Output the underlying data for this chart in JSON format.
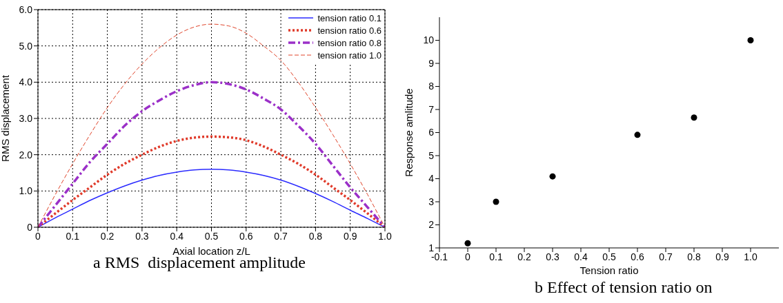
{
  "chart_data": [
    {
      "type": "line",
      "xlabel": "Axial location z/L",
      "ylabel": "RMS displacement",
      "annotations": [
        "a RMS  displacement amplitude"
      ],
      "x": [
        0,
        0.05,
        0.1,
        0.15,
        0.2,
        0.25,
        0.3,
        0.35,
        0.4,
        0.45,
        0.5,
        0.55,
        0.6,
        0.65,
        0.7,
        0.75,
        0.8,
        0.85,
        0.9,
        0.95,
        1.0
      ],
      "series": [
        {
          "name": "tension ratio 0.1",
          "color": "#2a2aff",
          "line_style": "solid",
          "values": [
            0,
            0.26,
            0.5,
            0.74,
            0.95,
            1.14,
            1.3,
            1.43,
            1.52,
            1.58,
            1.6,
            1.58,
            1.52,
            1.43,
            1.3,
            1.13,
            0.93,
            0.71,
            0.47,
            0.24,
            0
          ]
        },
        {
          "name": "tension ratio 0.6",
          "color": "#e03a2a",
          "line_style": "dotted",
          "values": [
            0,
            0.38,
            0.75,
            1.1,
            1.45,
            1.75,
            2.0,
            2.22,
            2.38,
            2.47,
            2.5,
            2.48,
            2.4,
            2.23,
            2.0,
            1.75,
            1.45,
            1.1,
            0.75,
            0.38,
            0
          ]
        },
        {
          "name": "tension ratio 0.8",
          "color": "#9b30c8",
          "line_style": "dashdot",
          "values": [
            0,
            0.6,
            1.2,
            1.8,
            2.3,
            2.8,
            3.2,
            3.5,
            3.75,
            3.92,
            4.0,
            3.95,
            3.8,
            3.55,
            3.25,
            2.8,
            2.3,
            1.7,
            1.1,
            0.55,
            0
          ]
        },
        {
          "name": "tension ratio 1.0",
          "color": "#e0442a",
          "line_style": "dashed",
          "values": [
            0,
            0.9,
            1.75,
            2.55,
            3.3,
            3.95,
            4.5,
            4.95,
            5.3,
            5.52,
            5.6,
            5.55,
            5.35,
            5.0,
            4.6,
            4.0,
            3.3,
            2.55,
            1.75,
            0.9,
            0
          ]
        }
      ],
      "xlim": [
        0,
        1
      ],
      "xticks": [
        0,
        0.1,
        0.2,
        0.3,
        0.4,
        0.5,
        0.6,
        0.7,
        0.8,
        0.9,
        {
          "value": 1,
          "label": "1.0"
        }
      ],
      "ylim": [
        0,
        6
      ],
      "yticks": [
        0,
        {
          "value": 1,
          "label": "1.0"
        },
        {
          "value": 2,
          "label": "2.0"
        },
        {
          "value": 3,
          "label": "3.0"
        },
        {
          "value": 4,
          "label": "4.0"
        },
        {
          "value": 5,
          "label": "5.0"
        },
        {
          "value": 6,
          "label": "6.0"
        }
      ],
      "grid": true,
      "legend": "top right",
      "marker": "none"
    },
    {
      "type": "scatter",
      "xlabel": "Tension ratio",
      "ylabel": "Response amlitude",
      "annotations": [
        "b Effect of tension ratio on"
      ],
      "x": [
        0,
        0.1,
        0.3,
        0.6,
        0.8,
        1.0
      ],
      "values": [
        1.2,
        3.0,
        4.1,
        5.9,
        6.65,
        10
      ],
      "color": "#000000",
      "xlim": [
        -0.1,
        1.1
      ],
      "xticks": [
        -0.1,
        0,
        0.1,
        0.2,
        0.3,
        0.4,
        0.5,
        0.6,
        0.7,
        0.8,
        0.9,
        {
          "value": 1,
          "label": "1.0"
        }
      ],
      "ylim": [
        1,
        11
      ],
      "yticks": [
        1,
        2,
        3,
        4,
        5,
        6,
        7,
        8,
        9,
        10
      ],
      "grid": false,
      "marker": "circle"
    }
  ]
}
